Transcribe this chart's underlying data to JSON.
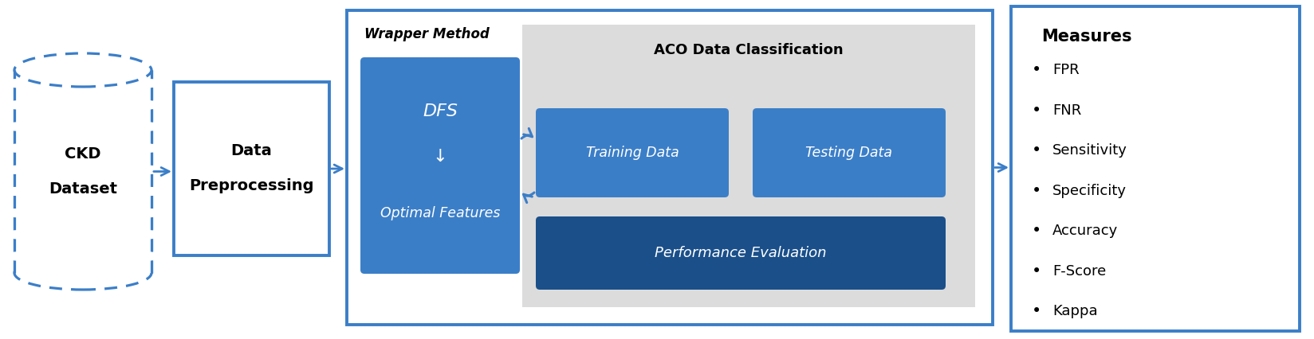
{
  "bg_color": "#ffffff",
  "blue_dark": "#1A4F8A",
  "blue_mid": "#3B7EC8",
  "blue_border": "#3B7EC8",
  "gray_bg": "#DCDCDC",
  "dashed_color": "#3B7EC8",
  "ckd_text": [
    "CKD",
    "Dataset"
  ],
  "preprocess_text": [
    "Data",
    "Preprocessing"
  ],
  "wrapper_label": "Wrapper Method",
  "dfs_line1": "DFS",
  "dfs_line2": "↓",
  "dfs_line3": "Optimal Features",
  "aco_label": "ACO Data Classification",
  "training_text": "Training Data",
  "testing_text": "Testing Data",
  "performance_text": "Performance Evaluation",
  "measures_title": "Measures",
  "measures_items": [
    "FPR",
    "FNR",
    "Sensitivity",
    "Specificity",
    "Accuracy",
    "F-Score",
    "Kappa"
  ]
}
